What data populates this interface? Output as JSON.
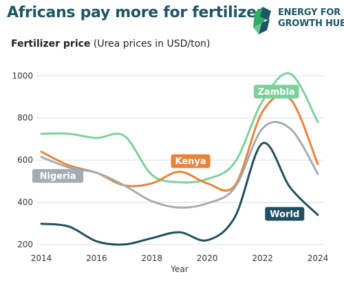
{
  "header": {
    "title": "Africans pay more for fertilizer",
    "logo_line1": "ENERGY FOR",
    "logo_line2": "GROWTH HUB",
    "logo_icon": "energy-for-growth-hub-logo-icon"
  },
  "chart_data": {
    "type": "line",
    "title": "Fertilizer price",
    "subtitle": "(Urea prices in USD/ton)",
    "xlabel": "Year",
    "ylabel": "",
    "xlim": [
      2014,
      2024
    ],
    "ylim": [
      180,
      1050
    ],
    "xticks": [
      2014,
      2016,
      2018,
      2020,
      2022,
      2024
    ],
    "yticks": [
      200,
      400,
      600,
      800,
      1000
    ],
    "grid": "horizontal",
    "legend": "direct-labels",
    "series": [
      {
        "name": "Zambia",
        "color": "#7ed09a",
        "x": [
          2014,
          2015,
          2016,
          2017,
          2018,
          2019,
          2020,
          2021,
          2022,
          2023,
          2024
        ],
        "values": [
          725,
          725,
          705,
          715,
          530,
          495,
          510,
          590,
          880,
          1010,
          780
        ],
        "label_year": 2022.5,
        "label_value": 925
      },
      {
        "name": "Kenya",
        "color": "#e8833a",
        "x": [
          2014,
          2015,
          2016,
          2017,
          2018,
          2019,
          2020,
          2021,
          2022,
          2023,
          2024
        ],
        "values": [
          640,
          575,
          540,
          480,
          490,
          545,
          490,
          480,
          830,
          890,
          580
        ],
        "label_year": 2019.4,
        "label_value": 595
      },
      {
        "name": "Nigeria",
        "color": "#a3acb2",
        "x": [
          2014,
          2015,
          2016,
          2017,
          2018,
          2019,
          2020,
          2021,
          2022,
          2023,
          2024
        ],
        "values": [
          615,
          565,
          540,
          480,
          405,
          375,
          395,
          470,
          750,
          750,
          535
        ],
        "label_year": 2014.6,
        "label_value": 525
      },
      {
        "name": "World",
        "color": "#1f4f61",
        "x": [
          2014,
          2015,
          2016,
          2017,
          2018,
          2019,
          2020,
          2021,
          2022,
          2023,
          2024
        ],
        "values": [
          298,
          285,
          215,
          200,
          230,
          258,
          220,
          330,
          680,
          470,
          340
        ],
        "label_year": 2022.8,
        "label_value": 345
      }
    ]
  }
}
